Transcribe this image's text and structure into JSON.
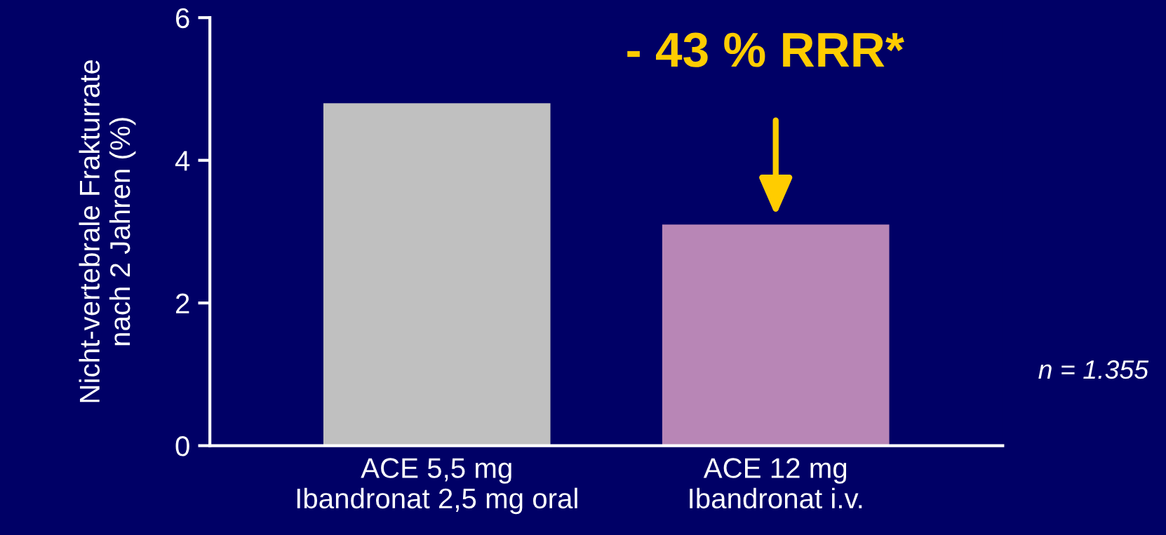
{
  "chart_data": {
    "type": "bar",
    "ylabel": "Nicht-vertebrale Frakturrate\nnach 2 Jahren (%)",
    "categories": [
      "ACE 5,5 mg\nIbandronat 2,5 mg oral",
      "ACE 12 mg\nIbandronat i.v."
    ],
    "values": [
      4.8,
      3.1
    ],
    "colors": [
      "#c0c0c0",
      "#b886b6"
    ],
    "ylim": [
      0,
      6
    ],
    "yticks": [
      0,
      2,
      4,
      6
    ],
    "grid": false,
    "legend": false,
    "annotations": [
      "- 43 % RRR*",
      "n = 1.355"
    ]
  }
}
